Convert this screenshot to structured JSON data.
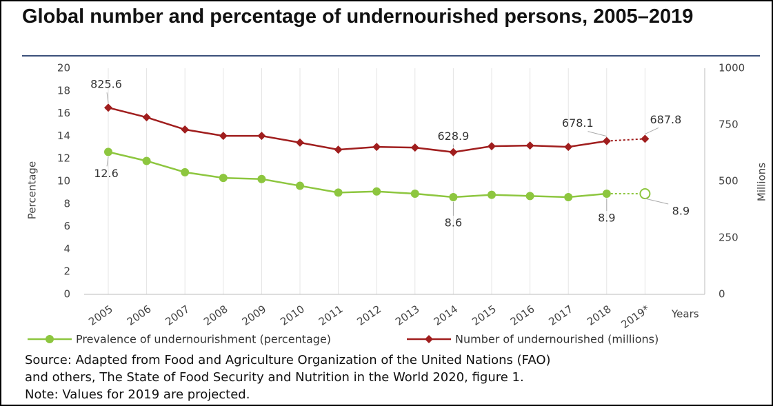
{
  "chart_data": {
    "type": "line",
    "title": "Global number and percentage of undernourished persons, 2005–2019",
    "categories": [
      "2005",
      "2006",
      "2007",
      "2008",
      "2009",
      "2010",
      "2011",
      "2012",
      "2013",
      "2014",
      "2015",
      "2016",
      "2017",
      "2018",
      "2019*"
    ],
    "projected_categories": [
      "2019*"
    ],
    "x_label": "Years",
    "y_label": "Percentage",
    "y2_label": "Millions",
    "ylim": [
      0,
      20
    ],
    "yticks": [
      0,
      2,
      4,
      6,
      8,
      10,
      12,
      14,
      16,
      18,
      20
    ],
    "y2lim": [
      0,
      1000
    ],
    "y2ticks": [
      0,
      250,
      500,
      750,
      1000
    ],
    "series": [
      {
        "name": "Prevalence of undernourishment (percentage)",
        "color": "#8dc63f",
        "marker": "circle",
        "values": [
          12.6,
          11.8,
          10.8,
          10.3,
          10.2,
          9.6,
          9.0,
          9.1,
          8.9,
          8.6,
          8.8,
          8.7,
          8.6,
          8.9,
          8.9
        ],
        "value_labels": [
          "12.6",
          null,
          null,
          null,
          null,
          null,
          null,
          null,
          null,
          "8.6",
          null,
          null,
          null,
          "8.9",
          "8.9"
        ]
      },
      {
        "name": "Number of undernourished (millions)",
        "color": "#a01e1e",
        "marker": "diamond",
        "axis": "y2",
        "values": [
          825.6,
          783,
          729,
          701,
          701,
          671,
          640,
          652,
          649,
          628.9,
          655,
          658,
          652,
          678.1,
          687.8
        ],
        "value_labels": [
          "825.6",
          null,
          null,
          null,
          null,
          null,
          null,
          null,
          null,
          "628.9",
          null,
          null,
          null,
          "678.1",
          "687.8"
        ]
      }
    ],
    "footnotes": [
      "Source: Adapted from Food and Agriculture Organization of the United Nations (FAO)",
      "and others, The State of Food Security and Nutrition in the World 2020, figure 1.",
      "Note: Values for 2019 are projected."
    ]
  }
}
